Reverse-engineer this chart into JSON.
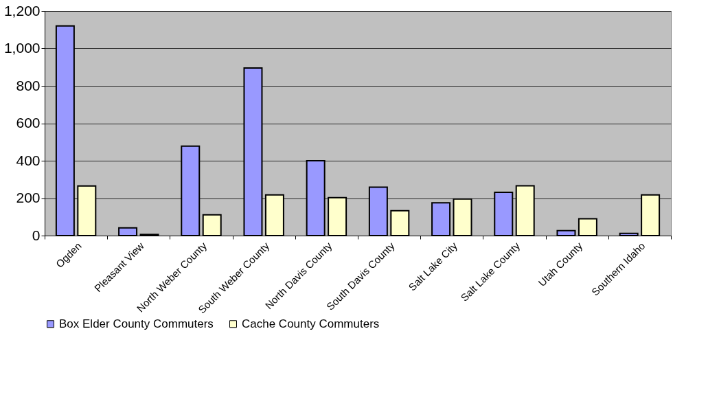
{
  "chart_data": {
    "type": "bar",
    "categories": [
      "Ogden",
      "Pleasant View",
      "North Weber County",
      "South Weber County",
      "North Davis County",
      "South Davis County",
      "Salt Lake City",
      "Salt Lake County",
      "Utah County",
      "Southern Idaho"
    ],
    "series": [
      {
        "name": "Box Elder County Commuters",
        "color": "#9999ff",
        "values": [
          1120,
          41,
          478,
          895,
          400,
          259,
          175,
          231,
          27,
          12
        ]
      },
      {
        "name": "Cache County Commuters",
        "color": "#ffffcc",
        "values": [
          265,
          6,
          111,
          217,
          203,
          133,
          195,
          266,
          90,
          217
        ]
      }
    ],
    "ylim": [
      0,
      1200
    ],
    "yticks": [
      0,
      200,
      400,
      600,
      800,
      {
        "value": 1000,
        "label": "1,000"
      },
      {
        "value": 1200,
        "label": "1,200"
      }
    ],
    "grid": "y",
    "legend": "bottom"
  }
}
